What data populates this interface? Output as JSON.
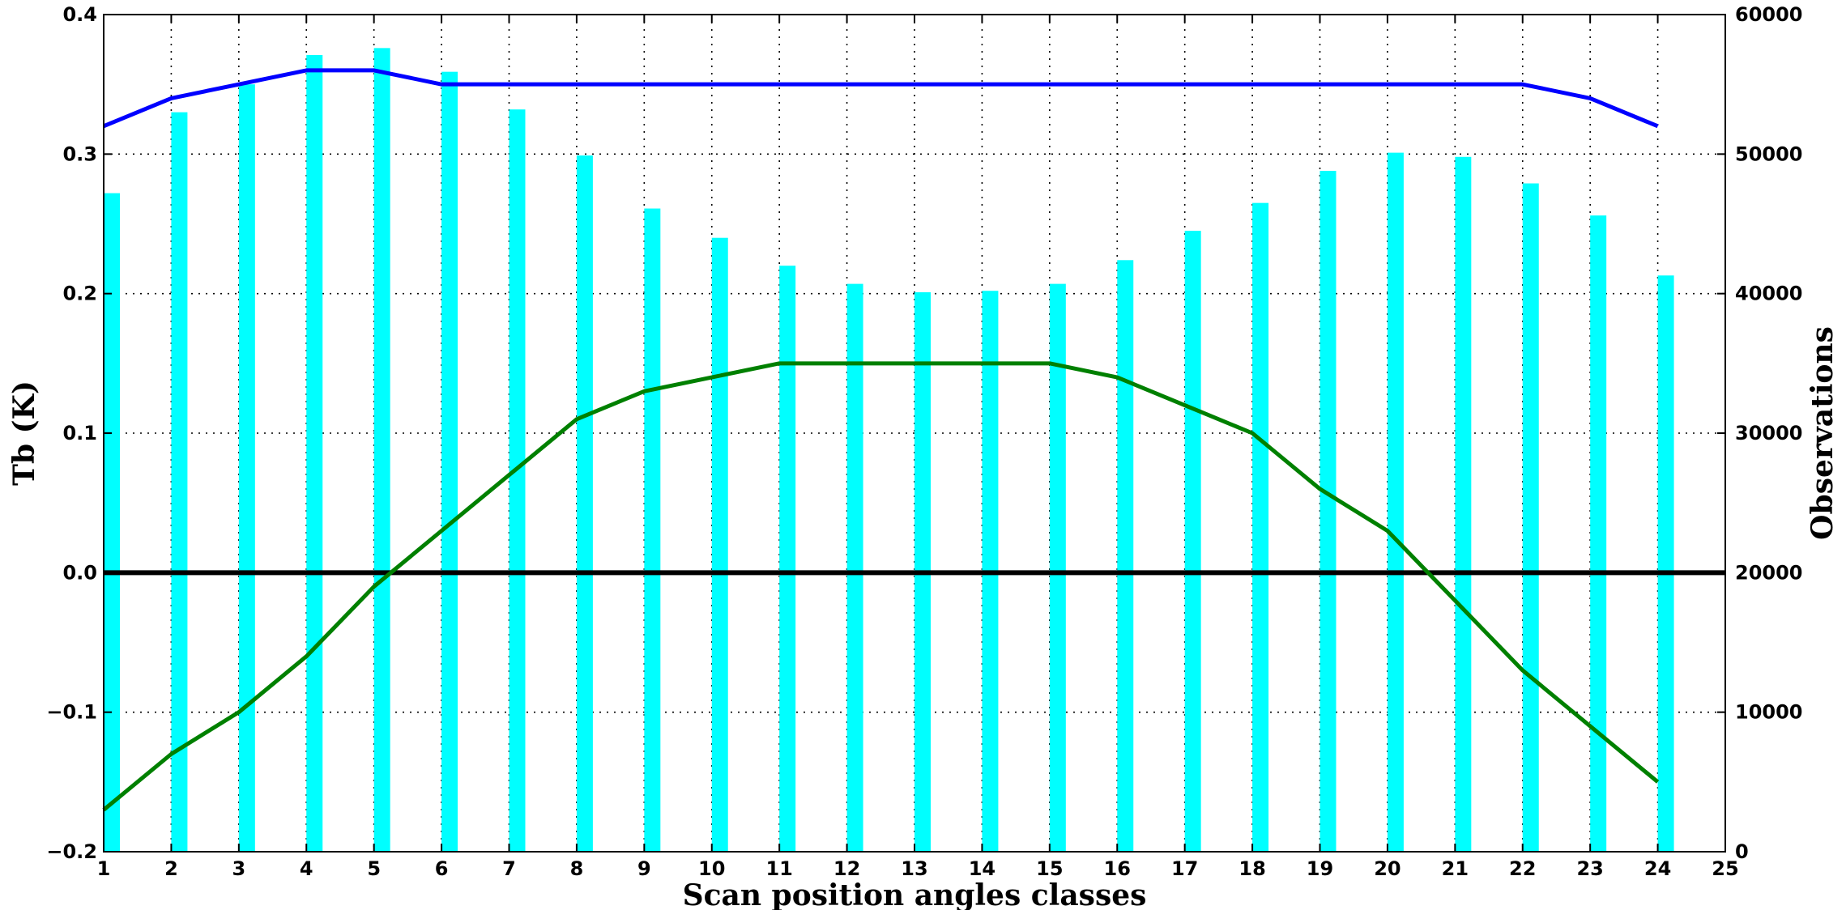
{
  "chart_data": {
    "type": "bar",
    "xlabel": "Scan position angles classes",
    "ylabel_left": "Tb (K)",
    "ylabel_right": "Observations",
    "xlim": [
      1,
      25
    ],
    "ylim_left": [
      -0.2,
      0.4
    ],
    "ylim_right": [
      0,
      60000
    ],
    "x_ticks": [
      "1",
      "2",
      "3",
      "4",
      "5",
      "6",
      "7",
      "8",
      "9",
      "10",
      "11",
      "12",
      "13",
      "14",
      "15",
      "16",
      "17",
      "18",
      "19",
      "20",
      "21",
      "22",
      "23",
      "24",
      "25"
    ],
    "y_left_ticks": [
      "−0.2",
      "−0.1",
      "0.0",
      "0.1",
      "0.2",
      "0.3",
      "0.4"
    ],
    "y_right_ticks": [
      "0",
      "10000",
      "20000",
      "30000",
      "40000",
      "50000",
      "60000"
    ],
    "grid": true,
    "colors": {
      "bars": "#00ffff",
      "blue_line": "#0000ff",
      "green_line": "#008000",
      "zero_line": "#000000"
    },
    "x": [
      1,
      2,
      3,
      4,
      5,
      6,
      7,
      8,
      9,
      10,
      11,
      12,
      13,
      14,
      15,
      16,
      17,
      18,
      19,
      20,
      21,
      22,
      23,
      24
    ],
    "observations": [
      47200,
      53000,
      55000,
      57100,
      57600,
      55900,
      53200,
      49900,
      46100,
      44000,
      42000,
      40700,
      40100,
      40200,
      40700,
      42400,
      44500,
      46500,
      48800,
      50100,
      49800,
      47900,
      45600,
      41300
    ],
    "blue_line": [
      0.32,
      0.34,
      0.35,
      0.36,
      0.36,
      0.35,
      0.35,
      0.35,
      0.35,
      0.35,
      0.35,
      0.35,
      0.35,
      0.35,
      0.35,
      0.35,
      0.35,
      0.35,
      0.35,
      0.35,
      0.35,
      0.35,
      0.34,
      0.32
    ],
    "green_line": [
      -0.17,
      -0.13,
      -0.1,
      -0.06,
      -0.01,
      0.03,
      0.07,
      0.11,
      0.13,
      0.14,
      0.15,
      0.15,
      0.15,
      0.15,
      0.15,
      0.14,
      0.12,
      0.1,
      0.06,
      0.03,
      -0.02,
      -0.07,
      -0.11,
      -0.15
    ],
    "reference_line": 0.0
  }
}
